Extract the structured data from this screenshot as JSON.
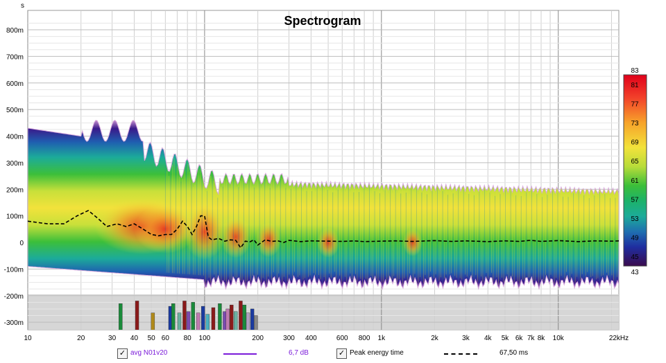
{
  "chart_data": {
    "type": "heatmap",
    "title": "Spectrogram",
    "yunit": "s",
    "xlabel": "",
    "ylabel": "",
    "x_scale": "log",
    "xlim": [
      10,
      22000
    ],
    "ylim": [
      -0.33,
      0.86
    ],
    "x_ticks": [
      {
        "v": 10,
        "label": "10"
      },
      {
        "v": 20,
        "label": "20"
      },
      {
        "v": 30,
        "label": "30"
      },
      {
        "v": 40,
        "label": "40"
      },
      {
        "v": 50,
        "label": "50"
      },
      {
        "v": 60,
        "label": "60"
      },
      {
        "v": 80,
        "label": "80"
      },
      {
        "v": 100,
        "label": "100"
      },
      {
        "v": 200,
        "label": "200"
      },
      {
        "v": 300,
        "label": "300"
      },
      {
        "v": 400,
        "label": "400"
      },
      {
        "v": 600,
        "label": "600"
      },
      {
        "v": 800,
        "label": "800"
      },
      {
        "v": 1000,
        "label": "1k"
      },
      {
        "v": 2000,
        "label": "2k"
      },
      {
        "v": 3000,
        "label": "3k"
      },
      {
        "v": 4000,
        "label": "4k"
      },
      {
        "v": 5000,
        "label": "5k"
      },
      {
        "v": 6000,
        "label": "6k"
      },
      {
        "v": 7000,
        "label": "7k"
      },
      {
        "v": 8000,
        "label": "8k"
      },
      {
        "v": 10000,
        "label": "10k"
      },
      {
        "v": 22000,
        "label": "22kHz"
      }
    ],
    "y_ticks": [
      {
        "v": 0.8,
        "label": "800m"
      },
      {
        "v": 0.7,
        "label": "700m"
      },
      {
        "v": 0.6,
        "label": "600m"
      },
      {
        "v": 0.5,
        "label": "500m"
      },
      {
        "v": 0.4,
        "label": "400m"
      },
      {
        "v": 0.3,
        "label": "300m"
      },
      {
        "v": 0.2,
        "label": "200m"
      },
      {
        "v": 0.1,
        "label": "100m"
      },
      {
        "v": 0.0,
        "label": "0"
      },
      {
        "v": -0.1,
        "label": "-100m"
      },
      {
        "v": -0.2,
        "label": "-200m"
      },
      {
        "v": -0.3,
        "label": "-300m"
      }
    ],
    "grid": true,
    "colorbar": {
      "min": 43,
      "max": 83,
      "labels": [
        83,
        81,
        77,
        73,
        69,
        65,
        61,
        57,
        53,
        49,
        45,
        43
      ],
      "colors": [
        "#d9001c",
        "#f2412a",
        "#f7a32a",
        "#f2e23b",
        "#c8e03a",
        "#55c12c",
        "#1cb24a",
        "#1cab9a",
        "#1f7fb0",
        "#1f3aa0",
        "#2a0f7a",
        "#3a0b4e"
      ]
    },
    "peak_energy_time": {
      "name": "Peak energy time",
      "x": [
        10,
        13,
        16,
        19,
        22,
        25,
        28,
        32,
        36,
        40,
        45,
        50,
        55,
        60,
        65,
        70,
        75,
        80,
        85,
        90,
        95,
        100,
        105,
        110,
        120,
        130,
        140,
        150,
        160,
        170,
        180,
        190,
        200,
        220,
        240,
        260,
        280,
        300,
        350,
        400,
        500,
        600,
        700,
        800,
        1000,
        1200,
        1500,
        2000,
        2500,
        3000,
        4000,
        5000,
        6000,
        7000,
        8000,
        10000,
        13000,
        16000,
        20000,
        22000
      ],
      "y": [
        0.08,
        0.07,
        0.07,
        0.1,
        0.12,
        0.09,
        0.06,
        0.07,
        0.06,
        0.07,
        0.05,
        0.03,
        0.025,
        0.03,
        0.03,
        0.05,
        0.08,
        0.06,
        0.03,
        0.06,
        0.1,
        0.1,
        0.02,
        0.01,
        0.015,
        0.005,
        0.01,
        0.008,
        -0.02,
        0.005,
        0.002,
        0.01,
        -0.01,
        0.01,
        0.004,
        0.006,
        0.0,
        0.008,
        0.003,
        0.006,
        0.005,
        0.004,
        0.006,
        0.003,
        0.005,
        0.006,
        0.004,
        0.007,
        0.004,
        0.006,
        0.003,
        0.006,
        0.004,
        0.008,
        0.004,
        0.007,
        0.003,
        0.006,
        0.005,
        0.006
      ]
    },
    "low_bars": {
      "y_top": -0.23,
      "bars": [
        {
          "x": 33.5,
          "y": -0.23,
          "color": "#1a8a3a"
        },
        {
          "x": 41.5,
          "y": -0.22,
          "color": "#8a1a1a"
        },
        {
          "x": 51,
          "y": -0.265,
          "color": "#b08a1a"
        },
        {
          "x": 64,
          "y": -0.24,
          "color": "#1a3aa0"
        },
        {
          "x": 66.5,
          "y": -0.23,
          "color": "#1a8a3a"
        },
        {
          "x": 72,
          "y": -0.265,
          "color": "#6ab0a0"
        },
        {
          "x": 77,
          "y": -0.22,
          "color": "#8a1a1a"
        },
        {
          "x": 81,
          "y": -0.26,
          "color": "#7a4ab0"
        },
        {
          "x": 86,
          "y": -0.225,
          "color": "#1a8a3a"
        },
        {
          "x": 92,
          "y": -0.265,
          "color": "#c07ab0"
        },
        {
          "x": 98,
          "y": -0.24,
          "color": "#1a3aa0"
        },
        {
          "x": 104,
          "y": -0.27,
          "color": "#4ab0c0"
        },
        {
          "x": 112,
          "y": -0.245,
          "color": "#8a1a1a"
        },
        {
          "x": 122,
          "y": -0.23,
          "color": "#1a8a3a"
        },
        {
          "x": 130,
          "y": -0.26,
          "color": "#7a4ab0"
        },
        {
          "x": 135,
          "y": -0.25,
          "color": "#c07ab0"
        },
        {
          "x": 142,
          "y": -0.235,
          "color": "#8a1a1a"
        },
        {
          "x": 150,
          "y": -0.26,
          "color": "#6ab0a0"
        },
        {
          "x": 160,
          "y": -0.22,
          "color": "#8a1a1a"
        },
        {
          "x": 168,
          "y": -0.235,
          "color": "#1a8a3a"
        },
        {
          "x": 176,
          "y": -0.265,
          "color": "#b0a0c0"
        },
        {
          "x": 186,
          "y": -0.25,
          "color": "#1a3aa0"
        },
        {
          "x": 195,
          "y": -0.275,
          "color": "#888888"
        }
      ]
    },
    "legend": [
      {
        "checked": true,
        "label": "avg N01v20",
        "color": "#7a1ad9",
        "dash": false,
        "value": "6,7 dB"
      },
      {
        "checked": true,
        "label": "Peak energy time",
        "color": "#000000",
        "dash": true,
        "value": "67,50 ms"
      }
    ]
  }
}
